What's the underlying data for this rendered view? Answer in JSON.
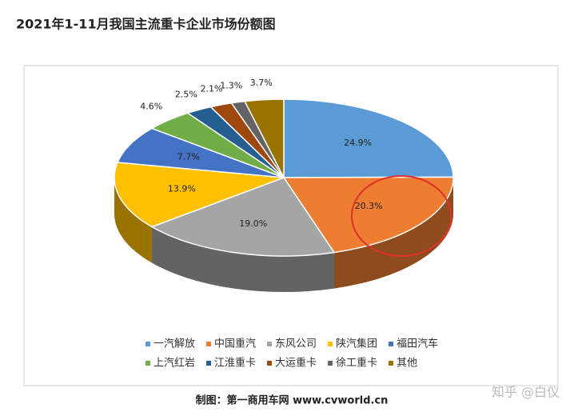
{
  "chart_data": {
    "type": "pie3d",
    "title": "2021年1-11月我国主流重卡企业市场份额图",
    "categories": [
      "一汽解放",
      "中国重汽",
      "东风公司",
      "陕汽集团",
      "福田汽车",
      "上汽红岩",
      "江淮重卡",
      "大运重卡",
      "徐工重卡",
      "其他"
    ],
    "values": [
      24.9,
      20.3,
      19.0,
      13.9,
      7.7,
      4.6,
      2.5,
      2.1,
      1.3,
      3.7
    ],
    "value_labels": [
      "24.9%",
      "20.3%",
      "19.0%",
      "13.9%",
      "7.7%",
      "4.6%",
      "2.5%",
      "2.1%",
      "1.3%",
      "3.7%"
    ],
    "colors": [
      "#5b9bd5",
      "#ed7d31",
      "#a5a5a5",
      "#ffc000",
      "#4472c4",
      "#70ad47",
      "#255e91",
      "#9e480e",
      "#636363",
      "#997300"
    ],
    "legend": "bottom"
  },
  "source": "制图：第一商用车网 www.cvworld.cn",
  "watermark": "知乎 @白仪"
}
